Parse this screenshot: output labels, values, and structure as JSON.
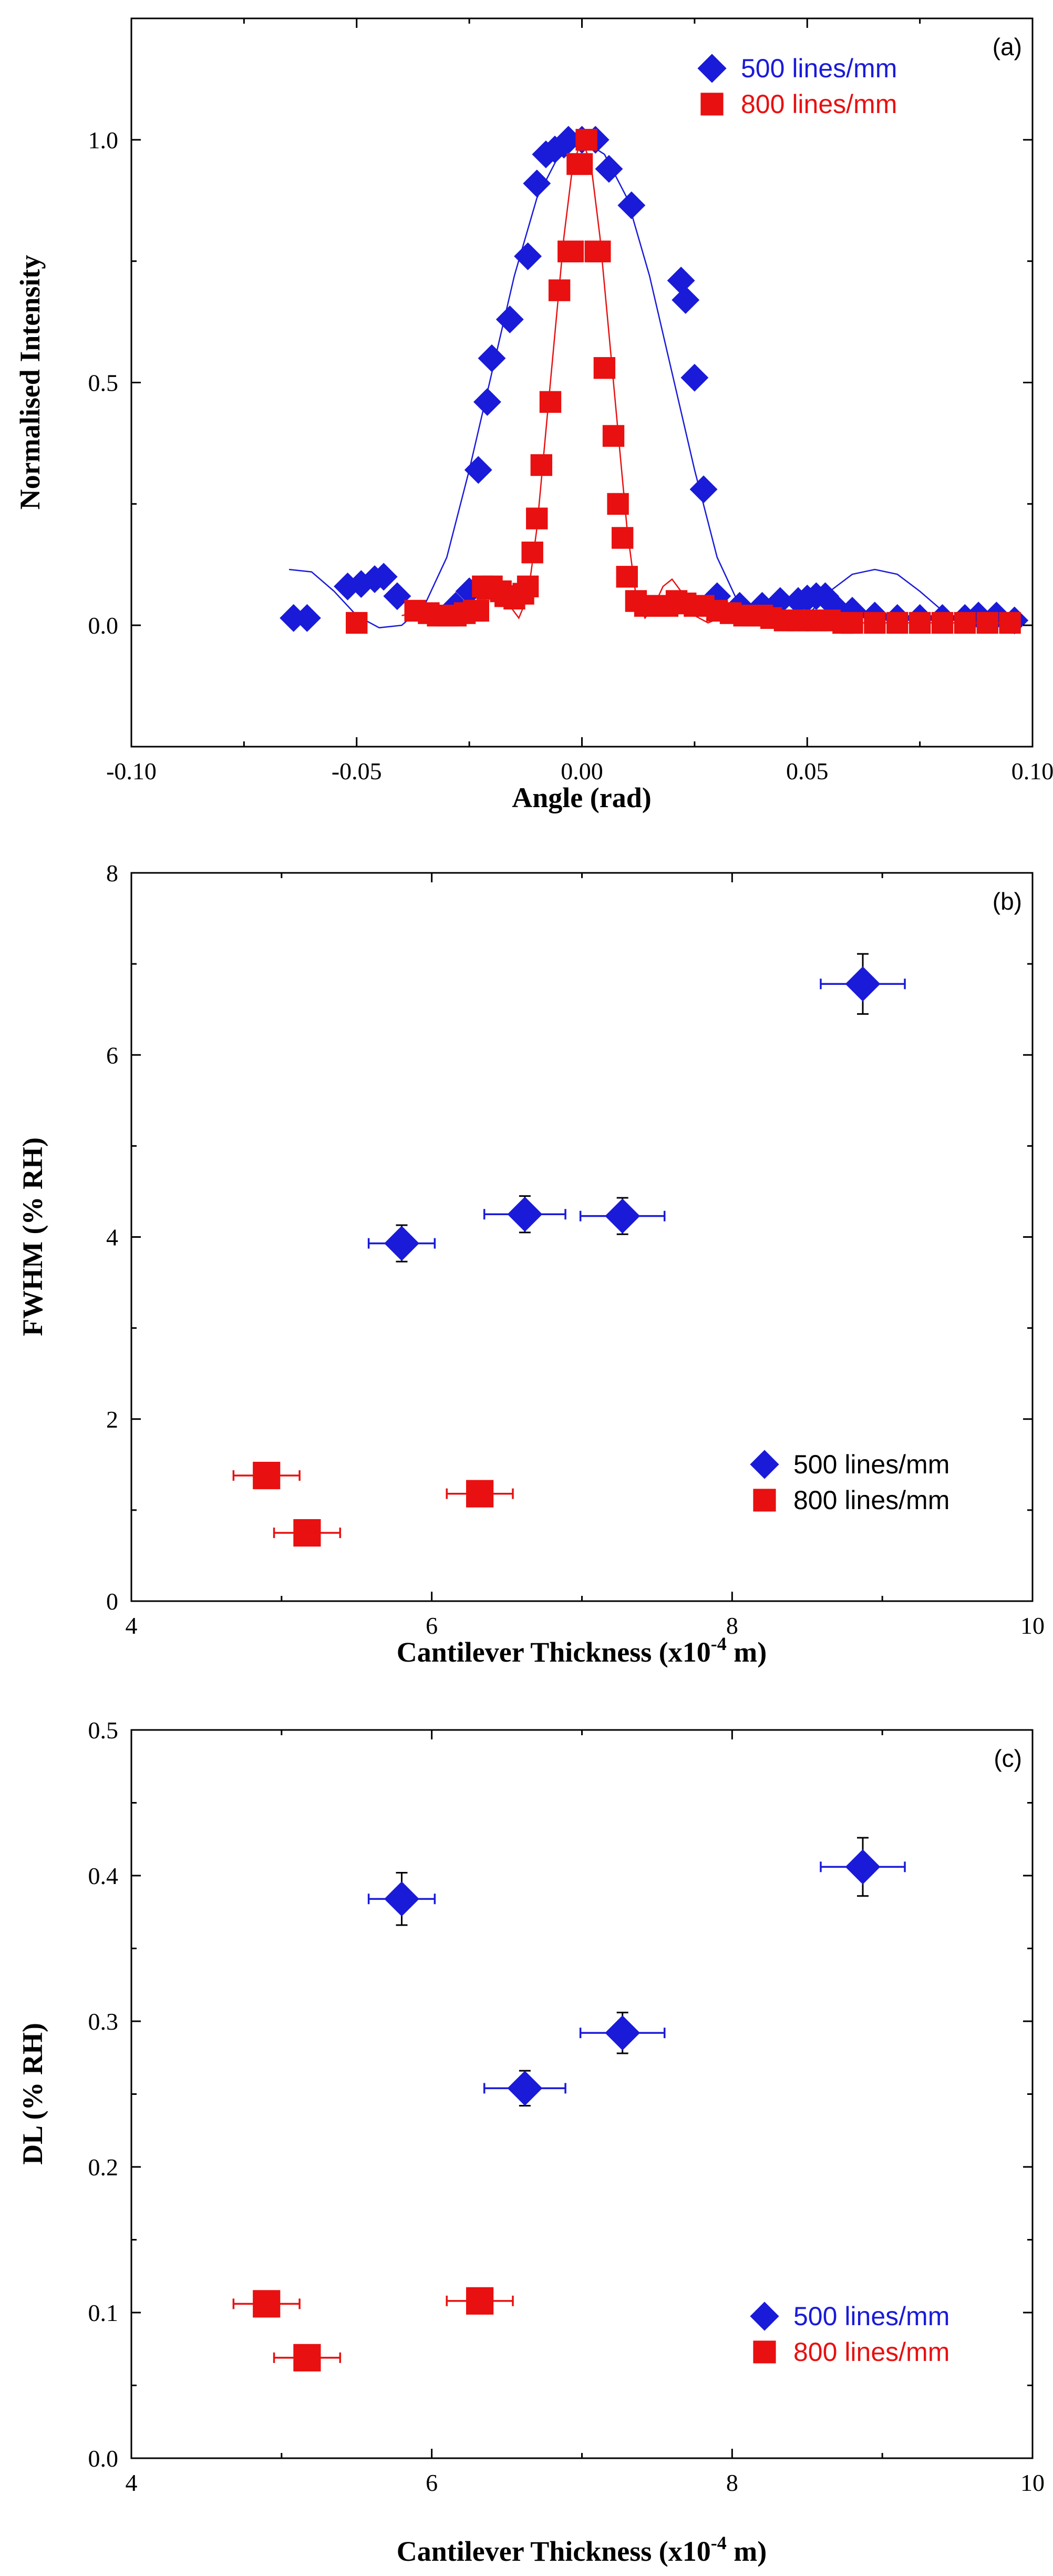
{
  "chart_data": [
    {
      "type": "scatter",
      "panel_label": "(a)",
      "title": "",
      "xlabel": "Angle (rad)",
      "ylabel": "Normalised Intensity",
      "xlim": [
        -0.1,
        0.1
      ],
      "ylim": [
        -0.25,
        1.25
      ],
      "xticks": [
        -0.1,
        -0.05,
        0.0,
        0.05,
        0.1
      ],
      "xtick_labels": [
        "-0.10",
        "-0.05",
        "0.00",
        "0.05",
        "0.10"
      ],
      "yticks": [
        0.0,
        0.5,
        1.0
      ],
      "ytick_labels": [
        "0.0",
        "0.5",
        "1.0"
      ],
      "legend": "top-right",
      "series": [
        {
          "name": "500 lines/mm",
          "color": "#1a1ad9",
          "marker": "diamond",
          "points": [
            [
              -0.064,
              0.015
            ],
            [
              -0.061,
              0.015
            ],
            [
              -0.052,
              0.08
            ],
            [
              -0.049,
              0.085
            ],
            [
              -0.046,
              0.095
            ],
            [
              -0.044,
              0.1
            ],
            [
              -0.041,
              0.06
            ],
            [
              -0.028,
              0.04
            ],
            [
              -0.025,
              0.07
            ],
            [
              -0.023,
              0.32
            ],
            [
              -0.021,
              0.46
            ],
            [
              -0.02,
              0.55
            ],
            [
              -0.016,
              0.63
            ],
            [
              -0.012,
              0.76
            ],
            [
              -0.01,
              0.91
            ],
            [
              -0.008,
              0.97
            ],
            [
              -0.006,
              0.98
            ],
            [
              -0.004,
              0.99
            ],
            [
              -0.003,
              1.0
            ],
            [
              0.0,
              1.0
            ],
            [
              0.003,
              1.0
            ],
            [
              0.006,
              0.94
            ],
            [
              0.011,
              0.865
            ],
            [
              0.022,
              0.71
            ],
            [
              0.023,
              0.67
            ],
            [
              0.025,
              0.51
            ],
            [
              0.027,
              0.28
            ],
            [
              0.03,
              0.06
            ],
            [
              0.035,
              0.04
            ],
            [
              0.04,
              0.04
            ],
            [
              0.044,
              0.05
            ],
            [
              0.048,
              0.05
            ],
            [
              0.05,
              0.055
            ],
            [
              0.052,
              0.06
            ],
            [
              0.054,
              0.06
            ],
            [
              0.056,
              0.04
            ],
            [
              0.06,
              0.03
            ],
            [
              0.065,
              0.02
            ],
            [
              0.07,
              0.015
            ],
            [
              0.075,
              0.015
            ],
            [
              0.08,
              0.015
            ],
            [
              0.085,
              0.015
            ],
            [
              0.088,
              0.02
            ],
            [
              0.092,
              0.02
            ],
            [
              0.096,
              0.01
            ]
          ],
          "fit": [
            [
              -0.065,
              0.115
            ],
            [
              -0.06,
              0.11
            ],
            [
              -0.055,
              0.07
            ],
            [
              -0.05,
              0.02
            ],
            [
              -0.045,
              -0.005
            ],
            [
              -0.04,
              0.0
            ],
            [
              -0.035,
              0.04
            ],
            [
              -0.03,
              0.14
            ],
            [
              -0.025,
              0.32
            ],
            [
              -0.02,
              0.52
            ],
            [
              -0.015,
              0.72
            ],
            [
              -0.01,
              0.88
            ],
            [
              -0.005,
              0.97
            ],
            [
              0.0,
              1.0
            ],
            [
              0.005,
              0.97
            ],
            [
              0.01,
              0.88
            ],
            [
              0.015,
              0.72
            ],
            [
              0.02,
              0.52
            ],
            [
              0.025,
              0.32
            ],
            [
              0.03,
              0.14
            ],
            [
              0.035,
              0.04
            ],
            [
              0.04,
              0.0
            ],
            [
              0.045,
              -0.005
            ],
            [
              0.05,
              0.02
            ],
            [
              0.055,
              0.07
            ],
            [
              0.06,
              0.105
            ],
            [
              0.065,
              0.115
            ],
            [
              0.07,
              0.105
            ],
            [
              0.075,
              0.07
            ],
            [
              0.08,
              0.03
            ],
            [
              0.085,
              0.0
            ],
            [
              0.09,
              -0.005
            ]
          ]
        },
        {
          "name": "800 lines/mm",
          "color": "#e81010",
          "marker": "square",
          "points": [
            [
              -0.05,
              0.005
            ],
            [
              -0.037,
              0.03
            ],
            [
              -0.034,
              0.025
            ],
            [
              -0.032,
              0.02
            ],
            [
              -0.03,
              0.02
            ],
            [
              -0.028,
              0.02
            ],
            [
              -0.026,
              0.025
            ],
            [
              -0.024,
              0.03
            ],
            [
              -0.023,
              0.03
            ],
            [
              -0.022,
              0.08
            ],
            [
              -0.021,
              0.075
            ],
            [
              -0.02,
              0.08
            ],
            [
              -0.018,
              0.07
            ],
            [
              -0.017,
              0.06
            ],
            [
              -0.016,
              0.06
            ],
            [
              -0.015,
              0.055
            ],
            [
              -0.013,
              0.065
            ],
            [
              -0.012,
              0.08
            ],
            [
              -0.011,
              0.15
            ],
            [
              -0.01,
              0.22
            ],
            [
              -0.009,
              0.33
            ],
            [
              -0.007,
              0.46
            ],
            [
              -0.005,
              0.69
            ],
            [
              -0.003,
              0.77
            ],
            [
              -0.002,
              0.77
            ],
            [
              -0.001,
              0.95
            ],
            [
              0.0,
              0.95
            ],
            [
              0.001,
              1.0
            ],
            [
              0.003,
              0.77
            ],
            [
              0.004,
              0.77
            ],
            [
              0.005,
              0.53
            ],
            [
              0.007,
              0.39
            ],
            [
              0.008,
              0.25
            ],
            [
              0.009,
              0.18
            ],
            [
              0.01,
              0.1
            ],
            [
              0.012,
              0.05
            ],
            [
              0.014,
              0.04
            ],
            [
              0.017,
              0.04
            ],
            [
              0.019,
              0.04
            ],
            [
              0.021,
              0.05
            ],
            [
              0.023,
              0.045
            ],
            [
              0.025,
              0.04
            ],
            [
              0.027,
              0.04
            ],
            [
              0.03,
              0.03
            ],
            [
              0.033,
              0.025
            ],
            [
              0.036,
              0.02
            ],
            [
              0.038,
              0.02
            ],
            [
              0.04,
              0.02
            ],
            [
              0.042,
              0.015
            ],
            [
              0.045,
              0.01
            ],
            [
              0.048,
              0.01
            ],
            [
              0.05,
              0.01
            ],
            [
              0.052,
              0.01
            ],
            [
              0.055,
              0.01
            ],
            [
              0.058,
              0.005
            ],
            [
              0.06,
              0.005
            ],
            [
              0.065,
              0.005
            ],
            [
              0.07,
              0.005
            ],
            [
              0.075,
              0.005
            ],
            [
              0.08,
              0.005
            ],
            [
              0.085,
              0.005
            ],
            [
              0.09,
              0.005
            ],
            [
              0.095,
              0.005
            ]
          ],
          "fit": [
            [
              -0.04,
              0.02
            ],
            [
              -0.035,
              0.03
            ],
            [
              -0.03,
              0.025
            ],
            [
              -0.025,
              0.01
            ],
            [
              -0.022,
              0.04
            ],
            [
              -0.02,
              0.095
            ],
            [
              -0.018,
              0.08
            ],
            [
              -0.016,
              0.04
            ],
            [
              -0.014,
              0.015
            ],
            [
              -0.012,
              0.06
            ],
            [
              -0.01,
              0.2
            ],
            [
              -0.008,
              0.4
            ],
            [
              -0.006,
              0.6
            ],
            [
              -0.004,
              0.8
            ],
            [
              -0.002,
              0.95
            ],
            [
              0.0,
              1.0
            ],
            [
              0.002,
              0.95
            ],
            [
              0.004,
              0.8
            ],
            [
              0.006,
              0.6
            ],
            [
              0.008,
              0.4
            ],
            [
              0.01,
              0.2
            ],
            [
              0.012,
              0.06
            ],
            [
              0.014,
              0.015
            ],
            [
              0.016,
              0.04
            ],
            [
              0.018,
              0.08
            ],
            [
              0.02,
              0.095
            ],
            [
              0.022,
              0.07
            ],
            [
              0.025,
              0.02
            ],
            [
              0.028,
              0.005
            ],
            [
              0.032,
              0.02
            ],
            [
              0.036,
              0.025
            ],
            [
              0.04,
              0.015
            ],
            [
              0.05,
              0.005
            ],
            [
              0.06,
              0.005
            ],
            [
              0.07,
              0.005
            ],
            [
              0.08,
              0.005
            ],
            [
              0.09,
              0.005
            ],
            [
              0.095,
              0.005
            ]
          ]
        }
      ]
    },
    {
      "type": "scatter",
      "panel_label": "(b)",
      "title": "",
      "xlabel_main": "Cantilever Thickness (x10",
      "xlabel_exp": "-4",
      "xlabel_end": " m)",
      "ylabel": "FWHM (% RH)",
      "xlim": [
        4,
        10
      ],
      "ylim": [
        0,
        8
      ],
      "xticks": [
        4,
        6,
        8,
        10
      ],
      "xtick_labels": [
        "4",
        "6",
        "8",
        "10"
      ],
      "yticks": [
        0,
        2,
        4,
        6,
        8
      ],
      "ytick_labels": [
        "0",
        "2",
        "4",
        "6",
        "8"
      ],
      "legend": "bottom-right",
      "series": [
        {
          "name": "500 lines/mm",
          "color": "#1a1ad9",
          "marker": "diamond",
          "points": [
            [
              5.8,
              3.93,
              0.22,
              0.2
            ],
            [
              6.62,
              4.25,
              0.27,
              0.2
            ],
            [
              7.27,
              4.23,
              0.28,
              0.2
            ],
            [
              8.87,
              6.78,
              0.28,
              0.33
            ]
          ]
        },
        {
          "name": "800 lines/mm",
          "color": "#e81010",
          "marker": "square",
          "points": [
            [
              4.9,
              1.38,
              0.22,
              0.05
            ],
            [
              5.17,
              0.75,
              0.22,
              0.05
            ],
            [
              6.32,
              1.18,
              0.22,
              0.05
            ]
          ]
        }
      ]
    },
    {
      "type": "scatter",
      "panel_label": "(c)",
      "title": "",
      "xlabel_main": "Cantilever Thickness (x10",
      "xlabel_exp": "-4",
      "xlabel_end": " m)",
      "ylabel": "DL (% RH)",
      "xlim": [
        4,
        10
      ],
      "ylim": [
        0,
        0.5
      ],
      "xticks": [
        4,
        6,
        8,
        10
      ],
      "xtick_labels": [
        "4",
        "6",
        "8",
        "10"
      ],
      "yticks": [
        0.0,
        0.1,
        0.2,
        0.3,
        0.4,
        0.5
      ],
      "ytick_labels": [
        "0.0",
        "0.1",
        "0.2",
        "0.3",
        "0.4",
        "0.5"
      ],
      "legend": "bottom-right",
      "series": [
        {
          "name": "500 lines/mm",
          "color": "#1a1ad9",
          "marker": "diamond",
          "points": [
            [
              5.8,
              0.384,
              0.22,
              0.018
            ],
            [
              6.62,
              0.254,
              0.27,
              0.012
            ],
            [
              7.27,
              0.292,
              0.28,
              0.014
            ],
            [
              8.87,
              0.406,
              0.28,
              0.02
            ]
          ]
        },
        {
          "name": "800 lines/mm",
          "color": "#e81010",
          "marker": "square",
          "points": [
            [
              4.9,
              0.106,
              0.22,
              0.005
            ],
            [
              5.17,
              0.069,
              0.22,
              0.005
            ],
            [
              6.32,
              0.108,
              0.22,
              0.005
            ]
          ]
        }
      ]
    }
  ]
}
